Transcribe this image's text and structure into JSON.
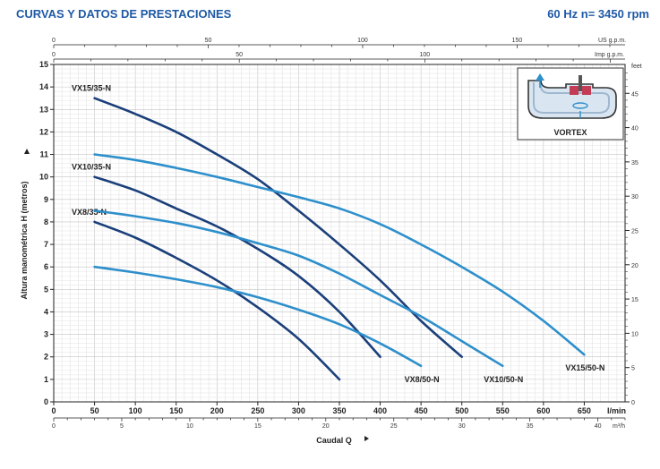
{
  "header": {
    "title": "CURVAS Y DATOS DE PRESTACIONES",
    "freq": "60 Hz   n= 3450 rpm"
  },
  "top_axes": {
    "usgpm": {
      "label": "US g.p.m.",
      "ticks": [
        0,
        50,
        100,
        150
      ]
    },
    "impgpm": {
      "label": "Imp g.p.m.",
      "ticks": [
        0,
        50,
        100
      ]
    }
  },
  "right_axis": {
    "label": "feet",
    "ticks": [
      0,
      5,
      10,
      15,
      20,
      25,
      30,
      35,
      40,
      45
    ]
  },
  "bottom_axes": {
    "lmin": {
      "label": "l/min",
      "ticks": [
        0,
        50,
        100,
        150,
        200,
        250,
        300,
        350,
        400,
        450,
        500,
        550,
        600,
        650
      ]
    },
    "m3h": {
      "label": "m³/h",
      "ticks": [
        0,
        5,
        10,
        15,
        20,
        25,
        30,
        35,
        40
      ]
    }
  },
  "logo": {
    "text": "VORTEX"
  },
  "chart_data": {
    "type": "line",
    "xlabel": "Caudal Q",
    "ylabel": "Altura manométrica H (metros)",
    "xlim": [
      0,
      700
    ],
    "ylim": [
      0,
      15
    ],
    "grid": true,
    "series": [
      {
        "name": "VX15/35-N",
        "color": "#1a3f7a",
        "x": [
          50,
          100,
          150,
          200,
          250,
          300,
          350,
          400,
          450,
          500
        ],
        "y": [
          13.5,
          12.8,
          12.0,
          11.0,
          9.9,
          8.5,
          7.0,
          5.4,
          3.6,
          2.0
        ]
      },
      {
        "name": "VX10/35-N",
        "color": "#1a3f7a",
        "x": [
          50,
          100,
          150,
          200,
          250,
          300,
          350,
          400
        ],
        "y": [
          10.0,
          9.4,
          8.6,
          7.8,
          6.8,
          5.6,
          4.0,
          2.0
        ]
      },
      {
        "name": "VX8/35-N",
        "color": "#1a3f7a",
        "x": [
          50,
          100,
          150,
          200,
          250,
          300,
          350
        ],
        "y": [
          8.0,
          7.3,
          6.4,
          5.4,
          4.2,
          2.8,
          1.0
        ]
      },
      {
        "name": "VX15/50-N",
        "color": "#2d8fcb",
        "x": [
          50,
          100,
          150,
          200,
          250,
          300,
          350,
          400,
          450,
          500,
          550,
          600,
          650
        ],
        "y": [
          11.0,
          10.75,
          10.4,
          10.0,
          9.55,
          9.1,
          8.6,
          7.9,
          7.0,
          6.0,
          4.9,
          3.6,
          2.1
        ]
      },
      {
        "name": "VX10/50-N",
        "color": "#2d8fcb",
        "x": [
          50,
          100,
          150,
          200,
          250,
          300,
          350,
          400,
          450,
          500,
          550
        ],
        "y": [
          8.5,
          8.25,
          7.95,
          7.55,
          7.05,
          6.5,
          5.7,
          4.75,
          3.8,
          2.7,
          1.6
        ]
      },
      {
        "name": "VX8/50-N",
        "color": "#2d8fcb",
        "x": [
          50,
          100,
          150,
          200,
          250,
          300,
          350,
          400,
          450
        ],
        "y": [
          6.0,
          5.75,
          5.45,
          5.1,
          4.65,
          4.1,
          3.45,
          2.6,
          1.6
        ]
      }
    ],
    "yticks": [
      0,
      1,
      2,
      3,
      4,
      5,
      6,
      7,
      8,
      9,
      10,
      11,
      12,
      13,
      14,
      15
    ]
  }
}
